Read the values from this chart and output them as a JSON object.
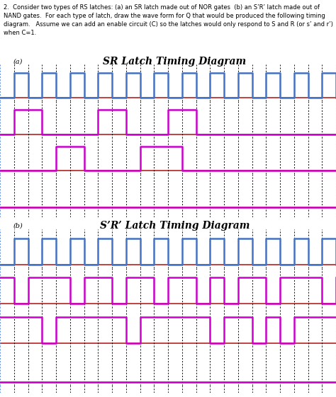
{
  "title_a": "SR Latch Timing Diagram",
  "title_b": "S’R’ Latch Timing Diagram",
  "label_a": "(a)",
  "label_b": "(b)",
  "header_text": "2.  Consider two types of RS latches: (a) an SR latch made out of NOR gates  (b) an S’R’ latch made out of NAND gates.  For each type of latch, draw the wave form for Q that would be produced the following timing diagram.   Assume we can add an enable circuit (C) so the latches would only respond to S and R (or s’ and r’) when C=1.",
  "color_blue": "#4472C4",
  "color_magenta": "#CC00CC",
  "color_red": "#BB3333",
  "color_bg": "#FFFFFF",
  "color_dot": "#000000",
  "color_dot_blue": "#5588DD",
  "T": [
    0,
    1,
    2,
    3,
    4,
    5,
    6,
    7,
    8,
    9,
    10,
    11,
    12,
    13,
    14,
    15,
    16,
    17,
    18,
    19,
    20,
    21,
    22,
    23,
    24
  ],
  "C_sig": [
    0,
    1,
    0,
    1,
    0,
    1,
    0,
    1,
    0,
    1,
    0,
    1,
    0,
    1,
    0,
    1,
    0,
    1,
    0,
    1,
    0,
    1,
    0,
    1,
    0
  ],
  "S_sig": [
    0,
    1,
    1,
    0,
    0,
    0,
    0,
    1,
    1,
    0,
    0,
    0,
    1,
    1,
    0,
    0,
    0,
    0,
    0,
    0,
    0,
    0,
    0,
    0,
    0
  ],
  "R_sig": [
    0,
    0,
    0,
    0,
    1,
    1,
    0,
    0,
    0,
    0,
    1,
    1,
    1,
    0,
    0,
    0,
    0,
    0,
    0,
    0,
    0,
    0,
    0,
    0,
    0
  ],
  "Sp_sig": [
    1,
    0,
    1,
    1,
    1,
    0,
    1,
    1,
    0,
    1,
    1,
    0,
    1,
    1,
    0,
    1,
    0,
    1,
    1,
    0,
    1,
    1,
    1,
    0,
    1
  ],
  "Rp_sig": [
    1,
    1,
    1,
    0,
    1,
    1,
    1,
    1,
    1,
    0,
    1,
    1,
    1,
    1,
    1,
    0,
    1,
    1,
    0,
    1,
    0,
    1,
    1,
    1,
    1
  ],
  "Q_blank": [
    0,
    0,
    0,
    0,
    0,
    0,
    0,
    0,
    0,
    0,
    0,
    0,
    0,
    0,
    0,
    0,
    0,
    0,
    0,
    0,
    0,
    0,
    0,
    0,
    0
  ]
}
